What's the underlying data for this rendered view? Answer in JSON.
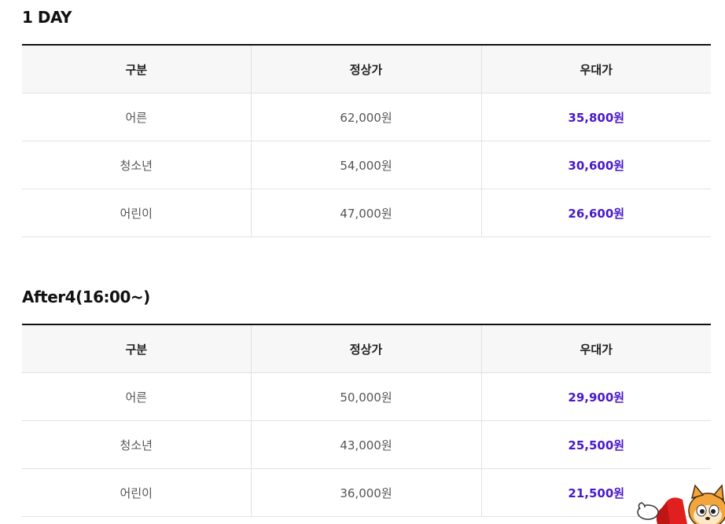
{
  "sections": [
    {
      "title": "1 DAY",
      "headers": [
        "구분",
        "정상가",
        "우대가"
      ],
      "rows": [
        {
          "category": "어른",
          "regular": "62,000원",
          "discount": "35,800원"
        },
        {
          "category": "청소년",
          "regular": "54,000원",
          "discount": "30,600원"
        },
        {
          "category": "어린이",
          "regular": "47,000원",
          "discount": "26,600원"
        }
      ]
    },
    {
      "title": "After4(16:00~)",
      "headers": [
        "구분",
        "정상가",
        "우대가"
      ],
      "rows": [
        {
          "category": "어른",
          "regular": "50,000원",
          "discount": "29,900원"
        },
        {
          "category": "청소년",
          "regular": "43,000원",
          "discount": "25,500원"
        },
        {
          "category": "어린이",
          "regular": "36,000원",
          "discount": "21,500원"
        }
      ]
    }
  ],
  "colors": {
    "discount": "#4a18c9",
    "header_bg": "#f7f7f7",
    "border": "#e2e2e2",
    "top_border": "#111111"
  },
  "mascot": {
    "icon": "raccoon-mascot-icon"
  }
}
